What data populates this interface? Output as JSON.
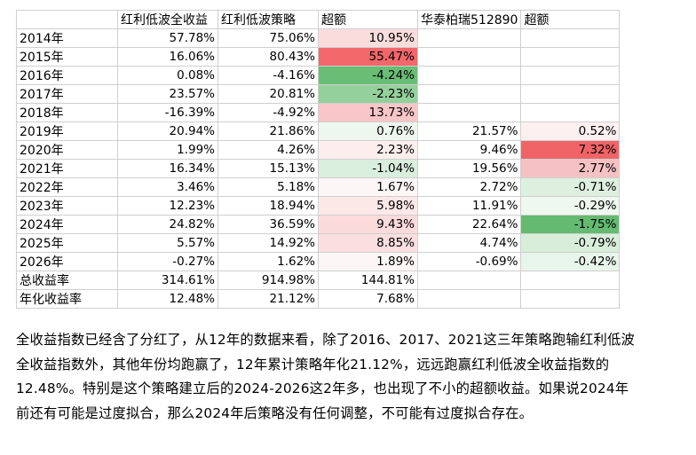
{
  "table": {
    "headers": [
      "",
      "红利低波全收益",
      "红利低波策略",
      "超额",
      "华泰柏瑞512890",
      "超额"
    ],
    "rows": [
      {
        "label": "2014年",
        "a": "57.78%",
        "b": "75.06%",
        "c": "10.95%",
        "d": "",
        "e": ""
      },
      {
        "label": "2015年",
        "a": "16.06%",
        "b": "80.43%",
        "c": "55.47%",
        "d": "",
        "e": ""
      },
      {
        "label": "2016年",
        "a": "0.08%",
        "b": "-4.16%",
        "c": "-4.24%",
        "d": "",
        "e": ""
      },
      {
        "label": "2017年",
        "a": "23.57%",
        "b": "20.81%",
        "c": "-2.23%",
        "d": "",
        "e": ""
      },
      {
        "label": "2018年",
        "a": "-16.39%",
        "b": "-4.92%",
        "c": "13.73%",
        "d": "",
        "e": ""
      },
      {
        "label": "2019年",
        "a": "20.94%",
        "b": "21.86%",
        "c": "0.76%",
        "d": "21.57%",
        "e": "0.52%"
      },
      {
        "label": "2020年",
        "a": "1.99%",
        "b": "4.26%",
        "c": "2.23%",
        "d": "9.46%",
        "e": "7.32%"
      },
      {
        "label": "2021年",
        "a": "16.34%",
        "b": "15.13%",
        "c": "-1.04%",
        "d": "19.56%",
        "e": "2.77%"
      },
      {
        "label": "2022年",
        "a": "3.46%",
        "b": "5.18%",
        "c": "1.67%",
        "d": "2.72%",
        "e": "-0.71%"
      },
      {
        "label": "2023年",
        "a": "12.23%",
        "b": "18.94%",
        "c": "5.98%",
        "d": "11.91%",
        "e": "-0.29%"
      },
      {
        "label": "2024年",
        "a": "24.82%",
        "b": "36.59%",
        "c": "9.43%",
        "d": "22.64%",
        "e": "-1.75%"
      },
      {
        "label": "2025年",
        "a": "5.57%",
        "b": "14.92%",
        "c": "8.85%",
        "d": "4.74%",
        "e": "-0.79%"
      },
      {
        "label": "2026年",
        "a": "-0.27%",
        "b": "1.62%",
        "c": "1.89%",
        "d": "-0.69%",
        "e": "-0.42%"
      },
      {
        "label": "总收益率",
        "a": "314.61%",
        "b": "914.98%",
        "c": "144.81%",
        "d": "",
        "e": ""
      },
      {
        "label": "年化收益率",
        "a": "12.48%",
        "b": "21.12%",
        "c": "7.68%",
        "d": "",
        "e": ""
      }
    ],
    "colors": {
      "c": [
        "#fbdcdc",
        "#f2676a",
        "#69bd75",
        "#94d09b",
        "#f8c6c7",
        "#edf7ee",
        "#fdeeee",
        "#d9eedc",
        "#fdf6f6",
        "#fde8e8",
        "#fbdadb",
        "#fbdfe0",
        "#fdf6f6",
        "#ffffff",
        "#ffffff"
      ],
      "e": [
        "",
        "",
        "",
        "",
        "",
        "#fdf0f0",
        "#f06366",
        "#f6c1c2",
        "#ddf0df",
        "#eef8ef",
        "#63ba70",
        "#d8eedb",
        "#e8f5ea",
        "",
        ""
      ]
    }
  },
  "paragraph": "全收益指数已经含了分红了，从12年的数据来看，除了2016、2017、2021这三年策略跑输红利低波全收益指数外，其他年份均跑赢了，12年累计策略年化21.12%，远远跑赢红利低波全收益指数的12.48%。特别是这个策略建立后的2024-2026这2年多，也出现了不小的超额收益。如果说2024年前还有可能是过度拟合，那么2024年后策略没有任何调整，不可能有过度拟合存在。"
}
